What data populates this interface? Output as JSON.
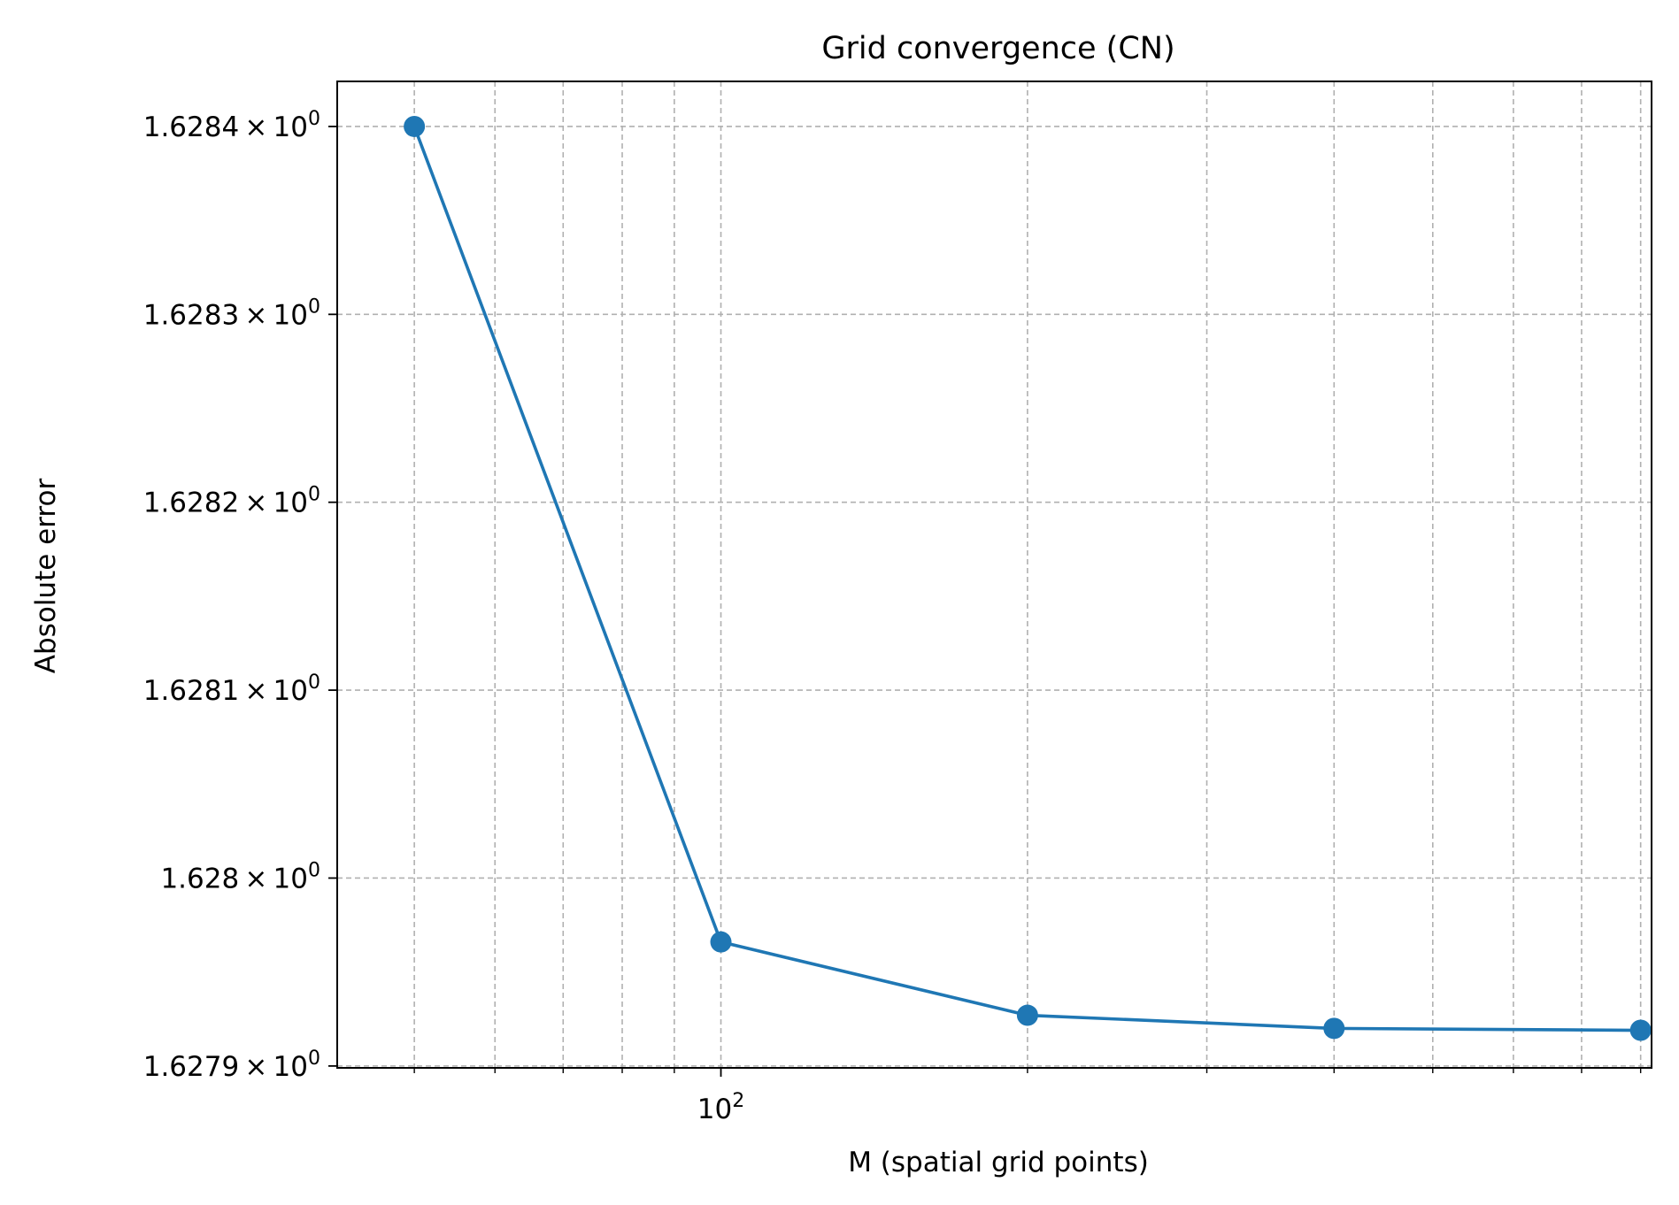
{
  "chart_data": {
    "type": "line",
    "title": "Grid convergence (CN)",
    "xlabel": "M (spatial grid points)",
    "ylabel": "Absolute error",
    "xscale": "log",
    "yscale": "log",
    "grid": true,
    "grid_minor": true,
    "legend": "none",
    "series": [
      {
        "color": "#1f77b4",
        "marker": "circle",
        "x": [
          50,
          100,
          200,
          400,
          800
        ],
        "y": [
          1.6284,
          1.627966,
          1.627927,
          1.62792,
          1.627919
        ]
      }
    ],
    "xlim": [
      42,
      820
    ],
    "ylim": [
      1.627899,
      1.628424
    ],
    "x_ticks": [
      {
        "value": 100,
        "base": "10",
        "exp": "2"
      }
    ],
    "y_ticks": [
      {
        "value": 1.6279,
        "mantissa": "1.6279",
        "base": "10",
        "exp": "0"
      },
      {
        "value": 1.628,
        "mantissa": "1.628",
        "base": "10",
        "exp": "0"
      },
      {
        "value": 1.6281,
        "mantissa": "1.6281",
        "base": "10",
        "exp": "0"
      },
      {
        "value": 1.6282,
        "mantissa": "1.6282",
        "base": "10",
        "exp": "0"
      },
      {
        "value": 1.6283,
        "mantissa": "1.6283",
        "base": "10",
        "exp": "0"
      },
      {
        "value": 1.6284,
        "mantissa": "1.6284",
        "base": "10",
        "exp": "0"
      }
    ],
    "colors": {
      "grid": "#b0b0b0",
      "axes": "#000000"
    }
  }
}
